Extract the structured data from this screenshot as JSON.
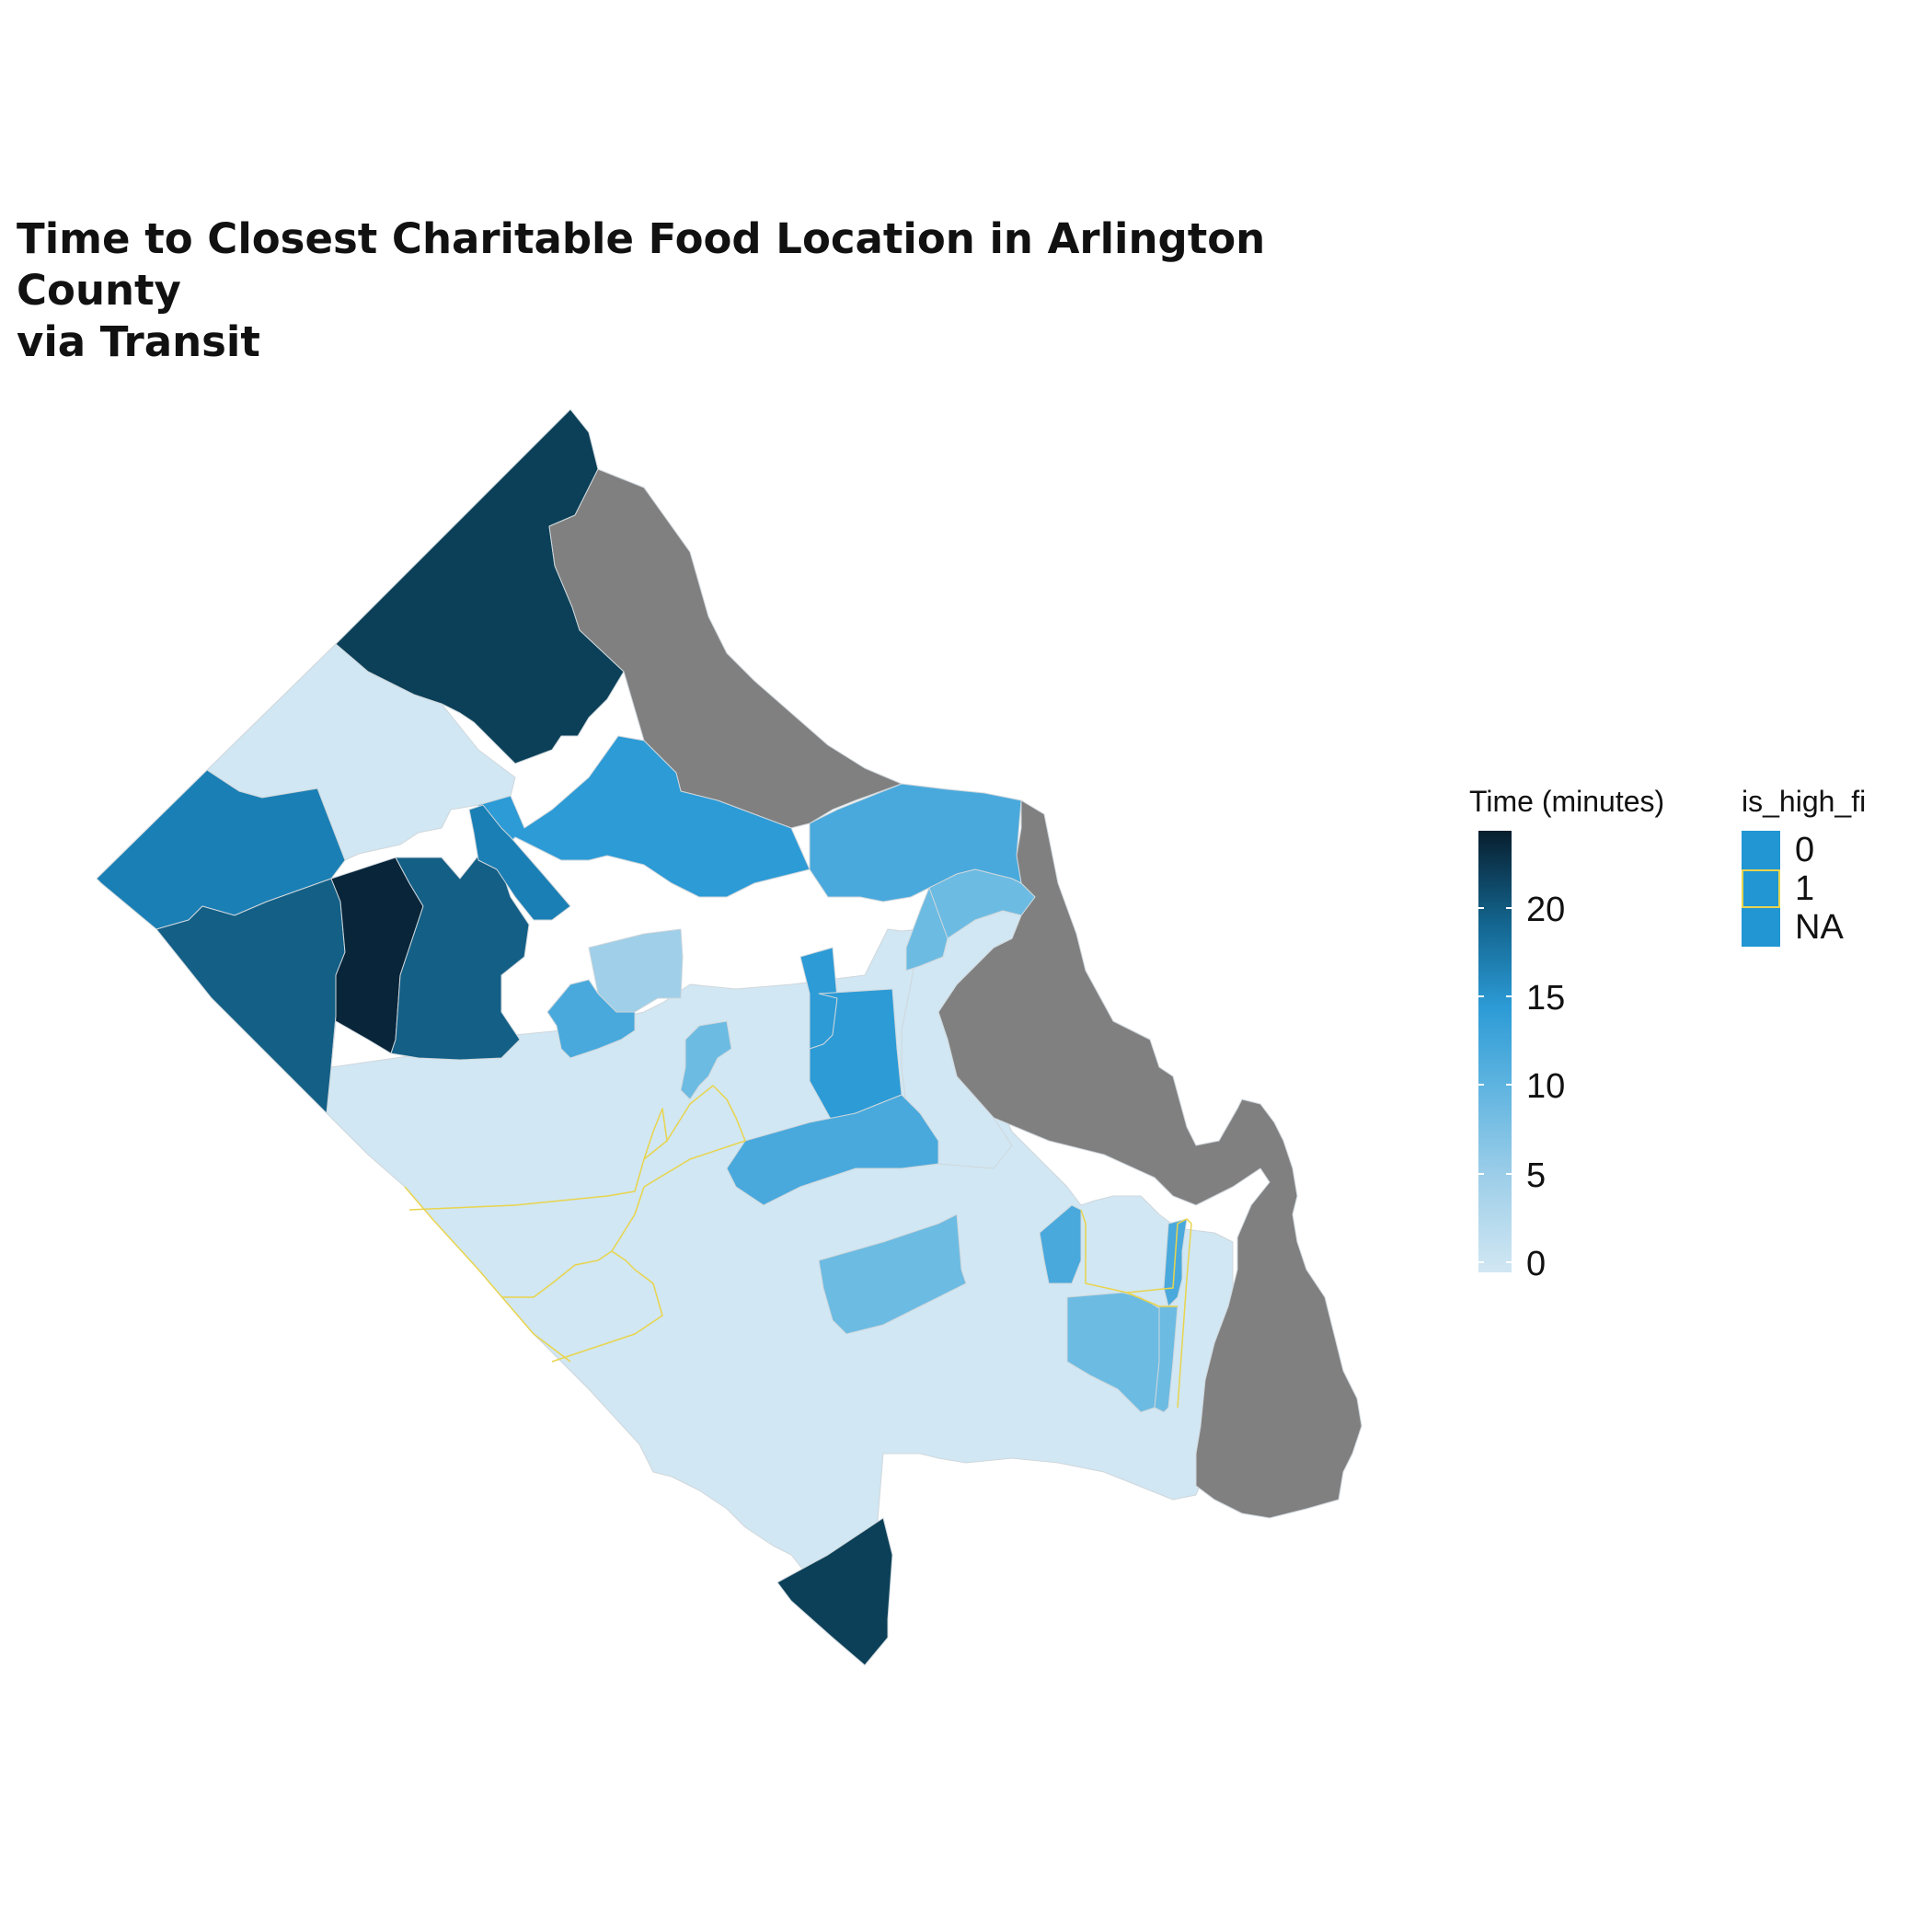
{
  "title": {
    "line1": "Time to Closest Charitable Food Location in Arlington County",
    "line2": "via Transit"
  },
  "colors": {
    "na": "#808080",
    "low": "#d1e7f3",
    "t5": "#9fcfe9",
    "t8": "#6cbbe2",
    "t11": "#49a9dc",
    "t13": "#2c9bd6",
    "t16": "#1a7fb4",
    "t19": "#135f86",
    "t22": "#0b4058",
    "t24": "#08253a",
    "boundary_fi": "#e8d44d"
  },
  "legend_time": {
    "title": "Time (minutes)",
    "ticks": [
      "0",
      "5",
      "10",
      "15",
      "20"
    ]
  },
  "legend_fi": {
    "title": "is_high_fi",
    "items": [
      {
        "label": "0",
        "fill": "#2196d3",
        "stroke": "#2196d3"
      },
      {
        "label": "1",
        "fill": "#2196d3",
        "stroke": "#e8d44d"
      },
      {
        "label": "NA",
        "fill": "#2196d3",
        "stroke": "#2196d3"
      }
    ]
  }
}
